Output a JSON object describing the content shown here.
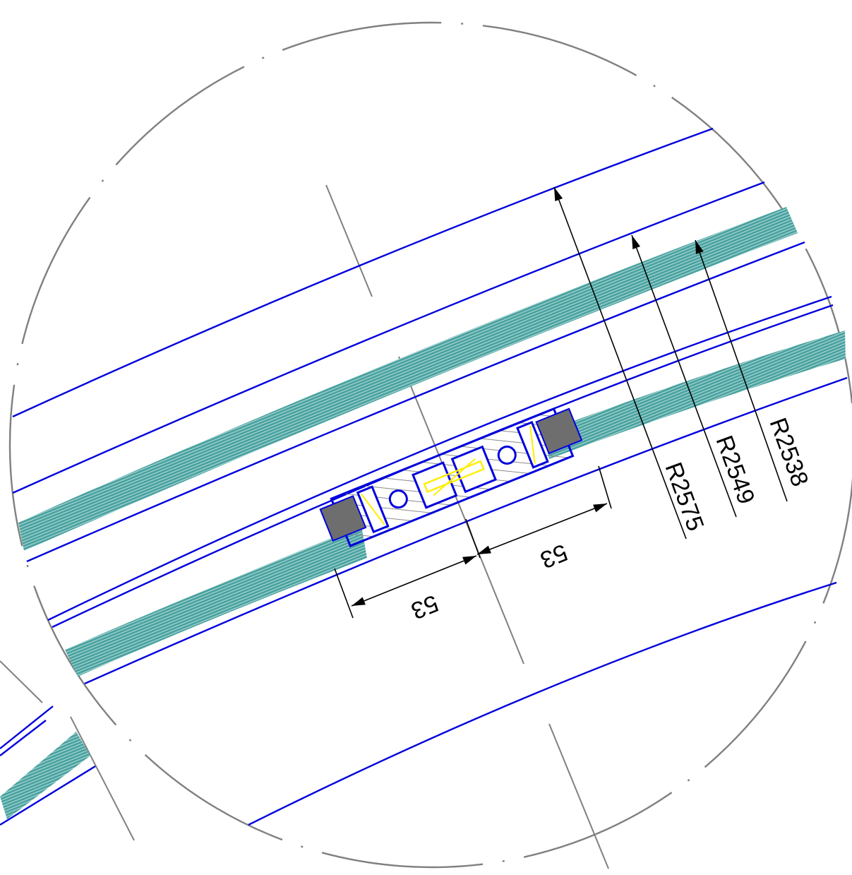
{
  "colors": {
    "background": "#ffffff",
    "outline_blue": "#0000dd",
    "glass_teal": "#4aa3a0",
    "dim_black": "#000000",
    "center_grey": "#808080",
    "seal_grey": "#6e6e6e",
    "insert_yellow": "#ffee00",
    "hatch_grey": "#8a8a8a"
  },
  "dimensions": {
    "radius_outer": "R2575",
    "radius_middle": "R2549",
    "radius_inner": "R2538",
    "width_left": "53",
    "width_right": "53"
  }
}
